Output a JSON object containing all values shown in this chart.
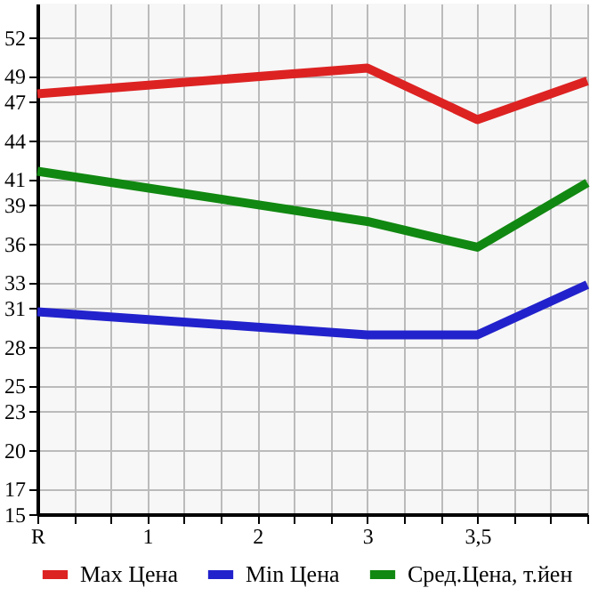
{
  "chart_data": {
    "type": "line",
    "categories": [
      "R",
      null,
      null,
      "1",
      null,
      null,
      "2",
      null,
      null,
      "3",
      null,
      null,
      "3,5",
      null,
      null,
      null
    ],
    "series": [
      {
        "name": "Max Цена",
        "color": "#dd2222",
        "values": [
          47.6,
          null,
          null,
          null,
          null,
          null,
          null,
          null,
          null,
          49.6,
          null,
          null,
          45.6,
          null,
          null,
          48.6
        ]
      },
      {
        "name": "Min Цена",
        "color": "#2222cc",
        "values": [
          30.7,
          null,
          null,
          null,
          null,
          null,
          null,
          null,
          null,
          28.9,
          null,
          null,
          28.9,
          null,
          null,
          32.8
        ]
      },
      {
        "name": "Сред.Цена, т.йен",
        "color": "#118811",
        "values": [
          41.6,
          null,
          null,
          null,
          null,
          null,
          null,
          null,
          null,
          37.7,
          null,
          null,
          35.7,
          null,
          null,
          40.7
        ]
      }
    ],
    "ylim": [
      15,
      54.6
    ],
    "yticks": [
      15,
      17,
      20,
      23,
      25,
      28,
      31,
      33,
      36,
      39,
      41,
      44,
      47,
      49,
      52
    ],
    "grid": true,
    "legend": "bottom",
    "marker": "none",
    "line_style": "solid"
  }
}
